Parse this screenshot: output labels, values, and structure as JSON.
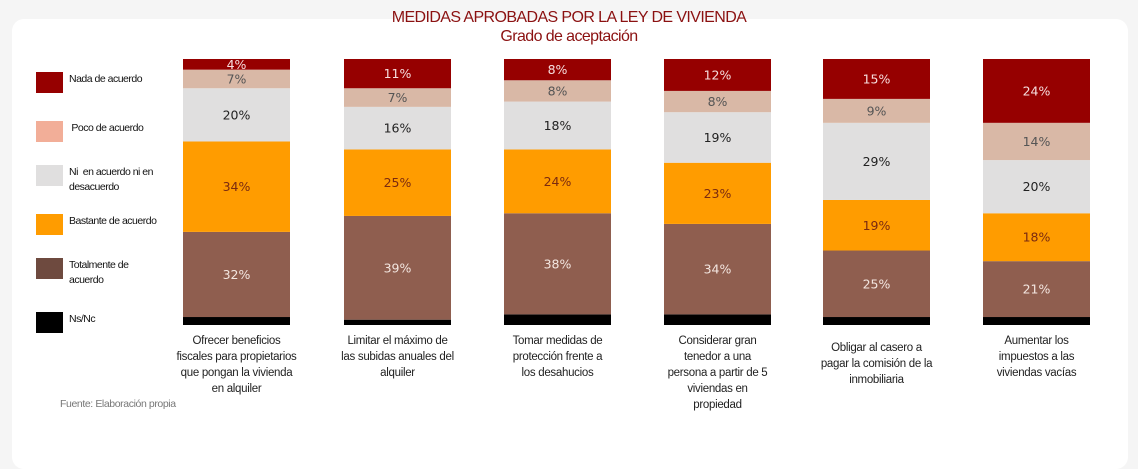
{
  "chart_data": {
    "type": "bar",
    "stacked": true,
    "orientation": "vertical",
    "title": "MEDIDAS APROBADAS POR LA LEY DE VIVIENDA",
    "subtitle": "Grado de aceptación",
    "xlabel": "",
    "ylabel": "",
    "ylim": [
      0,
      100
    ],
    "grid": false,
    "legend_position": "left",
    "value_suffix": "%",
    "categories": [
      "Ofrecer beneficios fiscales para propietarios que pongan la vivienda en alquiler",
      "Limitar el máximo de las subidas anuales del alquiler",
      "Tomar medidas de protección frente a los desahucios",
      "Considerar gran tenedor a una persona a partir de 5 viviendas en propiedad",
      "Obligar al casero a pagar la comisión de la inmobiliaria",
      "Aumentar los impuestos a las viviendas vacías"
    ],
    "category_lines": [
      [
        "Ofrecer beneficios",
        "fiscales para propietarios",
        "que pongan la vivienda",
        "en alquiler"
      ],
      [
        "Limitar el máximo de",
        "las subidas anuales del",
        "alquiler"
      ],
      [
        "Tomar medidas de",
        "protección frente  a",
        "los desahucios"
      ],
      [
        "Considerar gran",
        "tenedor  a una",
        "persona a partir de 5",
        "viviendas en",
        "propiedad"
      ],
      [
        "Obligar al casero a",
        "pagar la comisión de la",
        "inmobiliaria"
      ],
      [
        "Aumentar  los",
        "impuestos a las",
        "viviendas vacías"
      ]
    ],
    "series": [
      {
        "name": "Ns/Nc",
        "legend_lines": [
          "Ns/Nc"
        ],
        "color": "#000000",
        "label_color": "#ffffff",
        "show_labels": false,
        "values": [
          3,
          2,
          4,
          4,
          3,
          3
        ]
      },
      {
        "name": "Totalmente de acuerdo",
        "legend_lines": [
          "Totalmente de",
          "acuerdo"
        ],
        "color": "#8f5e4f",
        "legend_color": "#6e4a3f",
        "label_color": "#f3e6e0",
        "show_labels": true,
        "values": [
          32,
          39,
          38,
          34,
          25,
          21
        ]
      },
      {
        "name": "Bastante de acuerdo",
        "legend_lines": [
          "Bastante de acuerdo"
        ],
        "color": "#ff9c00",
        "label_color": "#7a2a10",
        "show_labels": true,
        "values": [
          34,
          25,
          24,
          23,
          19,
          18
        ]
      },
      {
        "name": "Ni en acuerdo ni en desacuerdo",
        "legend_lines": [
          "Ni  en acuerdo ni en",
          "desacuerdo"
        ],
        "color": "#e0dfdf",
        "label_color": "#222222",
        "show_labels": true,
        "values": [
          20,
          16,
          18,
          19,
          29,
          20
        ]
      },
      {
        "name": "Poco de acuerdo",
        "legend_lines": [
          " Poco de acuerdo"
        ],
        "color": "#d9b8a6",
        "legend_color": "#f2ae98",
        "label_color": "#555555",
        "show_labels": true,
        "values": [
          7,
          7,
          8,
          8,
          9,
          14
        ]
      },
      {
        "name": "Nada de acuerdo",
        "legend_lines": [
          "Nada de acuerdo"
        ],
        "color": "#960000",
        "legend_color": "#960000",
        "label_color": "#f6dede",
        "show_labels": true,
        "values": [
          4,
          11,
          8,
          12,
          15,
          24
        ]
      }
    ],
    "source": "Fuente: Elaboración propia"
  }
}
